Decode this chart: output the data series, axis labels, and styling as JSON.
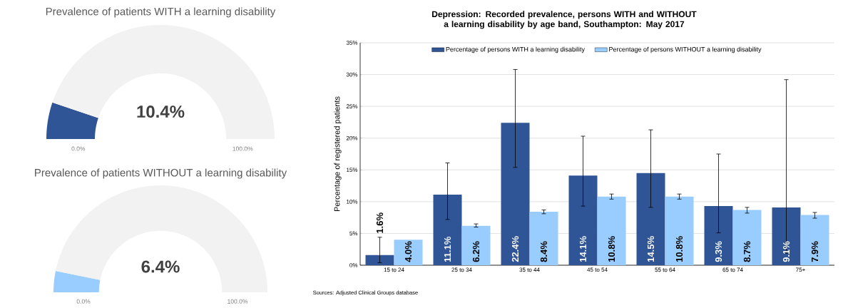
{
  "chart_data": [
    {
      "type": "donut",
      "title": "Prevalence of patients WITH a learning disability",
      "categories": [
        null,
        null
      ],
      "values": [
        10.4,
        89.6
      ],
      "colors": [
        "#2f5597",
        "#f2f2f2"
      ],
      "annotations": [
        "10.4%",
        "0.0%",
        "100.0%"
      ]
    },
    {
      "type": "donut",
      "title": "Prevalence of patients WITHOUT a learning disability",
      "categories": [
        null,
        null
      ],
      "values": [
        6.4,
        93.6
      ],
      "colors": [
        "#99ccff",
        "#f2f2f2"
      ],
      "annotations": [
        "6.4%",
        "0.0%",
        "100.0%"
      ]
    },
    {
      "type": "bar",
      "title": "Depression: Recorded prevalence, persons WITH and WITHOUT a learning disability by age band, Southampton: May 2017",
      "ylabel": "Percentage of registered patients",
      "categories": [
        "15 to 24",
        "25 to 34",
        "35 to 44",
        "45 to 54",
        "55 to 64",
        "65 to 74",
        "75+"
      ],
      "series": [
        {
          "name": "Percentage of persons WITH a learning disability",
          "color": "#2f5597",
          "values": [
            1.6,
            11.1,
            22.4,
            14.1,
            14.5,
            9.3,
            9.1
          ],
          "value_labels": [
            "1.6%",
            "11.1%",
            "22.4%",
            "14.1%",
            "14.5%",
            "9.3%",
            "9.1%"
          ],
          "errors": [
            [
              0.4,
              4.4
            ],
            [
              7.2,
              16.1
            ],
            [
              15.4,
              30.8
            ],
            [
              9.3,
              20.3
            ],
            [
              9.1,
              21.3
            ],
            [
              5.1,
              17.5
            ],
            [
              1.9,
              29.2
            ]
          ]
        },
        {
          "name": "Percentage of persons WITHOUT a learning disability",
          "color": "#99ccff",
          "values": [
            4.0,
            6.2,
            8.4,
            10.8,
            10.8,
            8.7,
            7.9
          ],
          "value_labels": [
            "4.0%",
            "6.2%",
            "8.4%",
            "10.8%",
            "10.8%",
            "8.7%",
            "7.9%"
          ],
          "errors": [
            null,
            [
              6.0,
              6.5
            ],
            [
              8.1,
              8.7
            ],
            [
              10.4,
              11.2
            ],
            [
              10.4,
              11.2
            ],
            [
              8.2,
              9.1
            ],
            [
              7.4,
              8.3
            ]
          ]
        }
      ],
      "ylim": [
        0,
        35
      ],
      "yticks": [
        {
          "value": 0,
          "label": "0%"
        },
        {
          "value": 5,
          "label": "5%"
        },
        {
          "value": 10,
          "label": "10%"
        },
        {
          "value": 15,
          "label": "15%"
        },
        {
          "value": 20,
          "label": "20%"
        },
        {
          "value": 25,
          "label": "25%"
        },
        {
          "value": 30,
          "label": "30%"
        },
        {
          "value": 35,
          "label": "35%"
        }
      ],
      "grid": "y",
      "legend": "top",
      "annotations": [
        "Sources: Adjusted Clinical Groups database"
      ]
    }
  ]
}
